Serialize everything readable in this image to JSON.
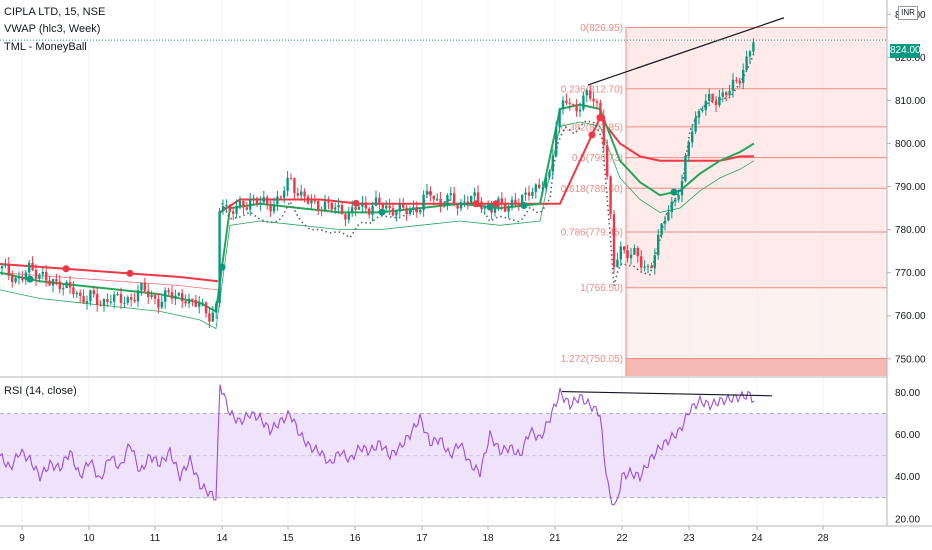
{
  "legend": {
    "symbol": "CIPLA LTD, 15, NSE",
    "vwap": "VWAP (hlc3, Week)",
    "tml": "TML - MoneyBall",
    "rsi": "RSI (14, close)"
  },
  "currency": "INR",
  "last_price": "824.00",
  "colors": {
    "up": "#089981",
    "down": "#f23645",
    "vwap": "#f23645",
    "tml": "#26a65b",
    "fib": "#f28b82",
    "fib_fill": "#fce3e1",
    "rsi": "#9c4ddb",
    "rsi_band": "#efe2fb"
  },
  "chart_data": [
    {
      "type": "candlestick",
      "title": "",
      "x_tick_labels": [
        "9",
        "10",
        "11",
        "14",
        "15",
        "16",
        "17",
        "18",
        "21",
        "22",
        "23",
        "24",
        "28"
      ],
      "y_tick_labels": [
        "830.00",
        "820.00",
        "810.00",
        "800.00",
        "790.00",
        "780.00",
        "770.00",
        "760.00",
        "750.00"
      ],
      "ylim": [
        746,
        831
      ],
      "current_price": 824.0,
      "fib_levels": [
        {
          "label": "0(826.95)",
          "value": 826.95
        },
        {
          "label": "0.236(812.70)",
          "value": 812.7
        },
        {
          "label": "0.382(803.85)",
          "value": 803.85
        },
        {
          "label": "0.5(796.73)",
          "value": 796.73
        },
        {
          "label": "0.618(789.60)",
          "value": 789.6
        },
        {
          "label": "0.786(779.45)",
          "value": 779.45
        },
        {
          "label": "1(766.50)",
          "value": 766.5
        },
        {
          "label": "1.272(750.05)",
          "value": 750.05
        }
      ],
      "price_path": [
        [
          0,
          771
        ],
        [
          10,
          770
        ],
        [
          20,
          768
        ],
        [
          30,
          771
        ],
        [
          40,
          770
        ],
        [
          50,
          767
        ],
        [
          60,
          768
        ],
        [
          70,
          766
        ],
        [
          80,
          764
        ],
        [
          90,
          765
        ],
        [
          100,
          762
        ],
        [
          110,
          765
        ],
        [
          120,
          763
        ],
        [
          130,
          764
        ],
        [
          140,
          766
        ],
        [
          150,
          765
        ],
        [
          160,
          763
        ],
        [
          170,
          765
        ],
        [
          180,
          765
        ],
        [
          190,
          762
        ],
        [
          200,
          764
        ],
        [
          210,
          759
        ],
        [
          216,
          760
        ],
        [
          220,
          788
        ],
        [
          230,
          784
        ],
        [
          240,
          785
        ],
        [
          250,
          787
        ],
        [
          260,
          786
        ],
        [
          270,
          786
        ],
        [
          280,
          787
        ],
        [
          290,
          792
        ],
        [
          300,
          788
        ],
        [
          310,
          786
        ],
        [
          320,
          786
        ],
        [
          330,
          785
        ],
        [
          340,
          785
        ],
        [
          350,
          783
        ],
        [
          360,
          786
        ],
        [
          370,
          785
        ],
        [
          380,
          786
        ],
        [
          390,
          785
        ],
        [
          400,
          784
        ],
        [
          410,
          785
        ],
        [
          420,
          785
        ],
        [
          430,
          789
        ],
        [
          440,
          786
        ],
        [
          450,
          787
        ],
        [
          460,
          786
        ],
        [
          470,
          787
        ],
        [
          480,
          787
        ],
        [
          490,
          784
        ],
        [
          500,
          786
        ],
        [
          510,
          786
        ],
        [
          520,
          786
        ],
        [
          530,
          790
        ],
        [
          540,
          789
        ],
        [
          550,
          793
        ],
        [
          556,
          805
        ],
        [
          565,
          810
        ],
        [
          575,
          808
        ],
        [
          585,
          811
        ],
        [
          595,
          810
        ],
        [
          602,
          806
        ],
        [
          608,
          790
        ],
        [
          614,
          771
        ],
        [
          620,
          776
        ],
        [
          626,
          775
        ],
        [
          634,
          774
        ],
        [
          642,
          772
        ],
        [
          650,
          771
        ],
        [
          658,
          777
        ],
        [
          666,
          784
        ],
        [
          674,
          787
        ],
        [
          682,
          790
        ],
        [
          690,
          803
        ],
        [
          700,
          808
        ],
        [
          710,
          810
        ],
        [
          720,
          811
        ],
        [
          730,
          812
        ],
        [
          740,
          816
        ],
        [
          748,
          820
        ],
        [
          754,
          824
        ]
      ],
      "vwap_path": [
        [
          0,
          772
        ],
        [
          60,
          771
        ],
        [
          120,
          770
        ],
        [
          180,
          769
        ],
        [
          218,
          768
        ],
        [
          220,
          784
        ],
        [
          240,
          787
        ],
        [
          280,
          787
        ],
        [
          320,
          787
        ],
        [
          360,
          786
        ],
        [
          400,
          786
        ],
        [
          440,
          786
        ],
        [
          480,
          786
        ],
        [
          520,
          786
        ],
        [
          560,
          786
        ],
        [
          600,
          806
        ],
        [
          620,
          800
        ],
        [
          640,
          797
        ],
        [
          660,
          796
        ],
        [
          680,
          796
        ],
        [
          700,
          796
        ],
        [
          720,
          796
        ],
        [
          740,
          797
        ],
        [
          754,
          797
        ]
      ],
      "tml_path": [
        [
          0,
          770
        ],
        [
          40,
          768
        ],
        [
          80,
          767
        ],
        [
          120,
          766
        ],
        [
          160,
          765
        ],
        [
          200,
          763
        ],
        [
          216,
          761
        ],
        [
          230,
          785
        ],
        [
          260,
          786
        ],
        [
          300,
          785
        ],
        [
          340,
          784
        ],
        [
          380,
          784
        ],
        [
          420,
          785
        ],
        [
          460,
          786
        ],
        [
          500,
          785
        ],
        [
          540,
          786
        ],
        [
          560,
          808
        ],
        [
          580,
          809
        ],
        [
          600,
          808
        ],
        [
          620,
          796
        ],
        [
          640,
          791
        ],
        [
          660,
          788
        ],
        [
          680,
          789
        ],
        [
          700,
          793
        ],
        [
          720,
          796
        ],
        [
          740,
          798
        ],
        [
          754,
          800
        ]
      ],
      "signal_dots_sell_x": [
        66,
        130,
        356,
        476,
        496,
        592,
        600
      ],
      "signal_dots_buy_x": [
        30,
        222,
        382,
        490,
        524,
        674
      ]
    },
    {
      "type": "line",
      "title": "RSI (14, close)",
      "y_tick_labels": [
        "80.00",
        "60.00",
        "40.00",
        "20.00"
      ],
      "ylim": [
        18,
        86
      ],
      "band": [
        30,
        70
      ],
      "rsi_path": [
        [
          0,
          50
        ],
        [
          10,
          44
        ],
        [
          20,
          52
        ],
        [
          30,
          48
        ],
        [
          40,
          40
        ],
        [
          50,
          46
        ],
        [
          60,
          44
        ],
        [
          70,
          52
        ],
        [
          80,
          40
        ],
        [
          90,
          48
        ],
        [
          100,
          38
        ],
        [
          110,
          50
        ],
        [
          120,
          44
        ],
        [
          130,
          56
        ],
        [
          140,
          42
        ],
        [
          150,
          50
        ],
        [
          160,
          46
        ],
        [
          170,
          52
        ],
        [
          180,
          40
        ],
        [
          190,
          48
        ],
        [
          200,
          36
        ],
        [
          210,
          32
        ],
        [
          216,
          30
        ],
        [
          220,
          84
        ],
        [
          230,
          70
        ],
        [
          240,
          66
        ],
        [
          250,
          70
        ],
        [
          260,
          68
        ],
        [
          270,
          62
        ],
        [
          280,
          66
        ],
        [
          290,
          70
        ],
        [
          300,
          60
        ],
        [
          310,
          54
        ],
        [
          320,
          52
        ],
        [
          330,
          46
        ],
        [
          340,
          52
        ],
        [
          350,
          48
        ],
        [
          360,
          54
        ],
        [
          370,
          52
        ],
        [
          380,
          56
        ],
        [
          390,
          50
        ],
        [
          400,
          54
        ],
        [
          410,
          60
        ],
        [
          420,
          68
        ],
        [
          430,
          56
        ],
        [
          440,
          58
        ],
        [
          450,
          50
        ],
        [
          460,
          56
        ],
        [
          470,
          46
        ],
        [
          480,
          42
        ],
        [
          490,
          60
        ],
        [
          500,
          52
        ],
        [
          510,
          54
        ],
        [
          520,
          50
        ],
        [
          530,
          62
        ],
        [
          540,
          58
        ],
        [
          550,
          68
        ],
        [
          560,
          80
        ],
        [
          570,
          74
        ],
        [
          580,
          78
        ],
        [
          590,
          74
        ],
        [
          600,
          70
        ],
        [
          604,
          50
        ],
        [
          610,
          30
        ],
        [
          616,
          26
        ],
        [
          622,
          40
        ],
        [
          630,
          42
        ],
        [
          640,
          40
        ],
        [
          650,
          48
        ],
        [
          660,
          54
        ],
        [
          670,
          58
        ],
        [
          680,
          62
        ],
        [
          690,
          72
        ],
        [
          700,
          76
        ],
        [
          710,
          74
        ],
        [
          720,
          76
        ],
        [
          730,
          77
        ],
        [
          740,
          78
        ],
        [
          750,
          79
        ],
        [
          754,
          76
        ]
      ],
      "trendline": [
        [
          562,
          80.5
        ],
        [
          772,
          78.5
        ]
      ]
    }
  ]
}
